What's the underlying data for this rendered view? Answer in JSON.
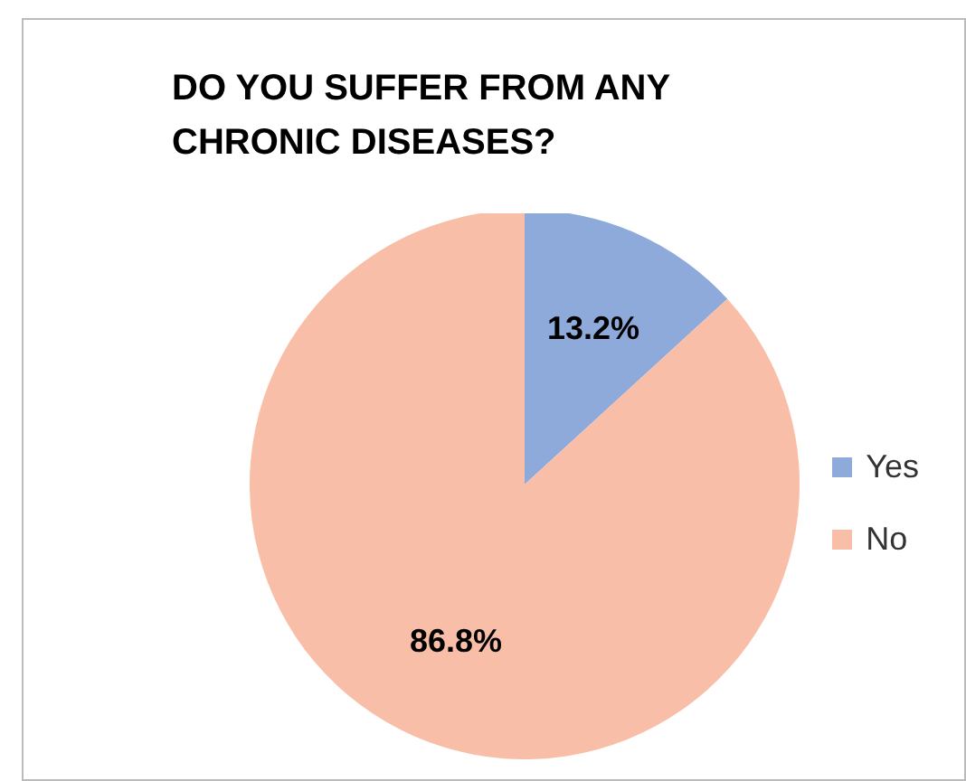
{
  "chart_data": {
    "type": "pie",
    "title": "DO YOU SUFFER FROM ANY CHRONIC DISEASES?",
    "categories": [
      "Yes",
      "No"
    ],
    "values": [
      13.2,
      86.8
    ],
    "colors": [
      "#8eaadb",
      "#f9bea7"
    ],
    "value_labels": [
      "13.2%",
      "86.8%"
    ],
    "legend": "right"
  }
}
